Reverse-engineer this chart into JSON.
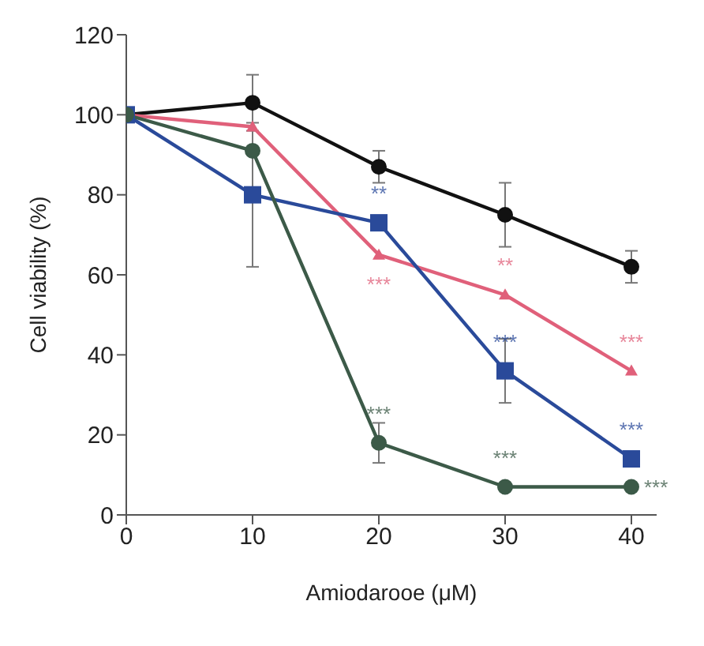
{
  "chart_data": {
    "type": "line",
    "xlabel": "Amiodarooe (μM)",
    "ylabel": "Cell viability (%)",
    "x": [
      0,
      10,
      20,
      30,
      40
    ],
    "xlim": [
      0,
      42
    ],
    "xticks": [
      0,
      10,
      20,
      30,
      40
    ],
    "ylim": [
      0,
      120
    ],
    "yticks": [
      0,
      20,
      40,
      60,
      80,
      100,
      120
    ],
    "grid": false,
    "legend": false,
    "series": [
      {
        "color": "#111111",
        "marker": "circle",
        "values": [
          100,
          103,
          87,
          75,
          62
        ],
        "errors": [
          null,
          7,
          4,
          8,
          4
        ]
      },
      {
        "color": "#e0607a",
        "marker": "triangle",
        "values": [
          100,
          97,
          65,
          55,
          36
        ],
        "errors": [
          null,
          null,
          null,
          null,
          null
        ]
      },
      {
        "color": "#2a4a9a",
        "marker": "square",
        "values": [
          100,
          80,
          73,
          36,
          14
        ],
        "errors": [
          null,
          18,
          null,
          8,
          null
        ]
      },
      {
        "color": "#3c5a48",
        "marker": "circle",
        "values": [
          100,
          91,
          18,
          7,
          7
        ],
        "errors": [
          null,
          null,
          5,
          null,
          null
        ]
      }
    ],
    "annotations": [
      {
        "text": "**",
        "x": 20,
        "y": 73
      },
      {
        "text": "***",
        "x": 20,
        "y": 65
      },
      {
        "text": "***",
        "x": 20,
        "y": 18
      },
      {
        "text": "**",
        "x": 30,
        "y": 55
      },
      {
        "text": "***",
        "x": 30,
        "y": 36
      },
      {
        "text": "***",
        "x": 30,
        "y": 7
      },
      {
        "text": "***",
        "x": 40,
        "y": 36
      },
      {
        "text": "***",
        "x": 40,
        "y": 14
      },
      {
        "text": "***",
        "x": 40,
        "y": 7
      }
    ]
  }
}
